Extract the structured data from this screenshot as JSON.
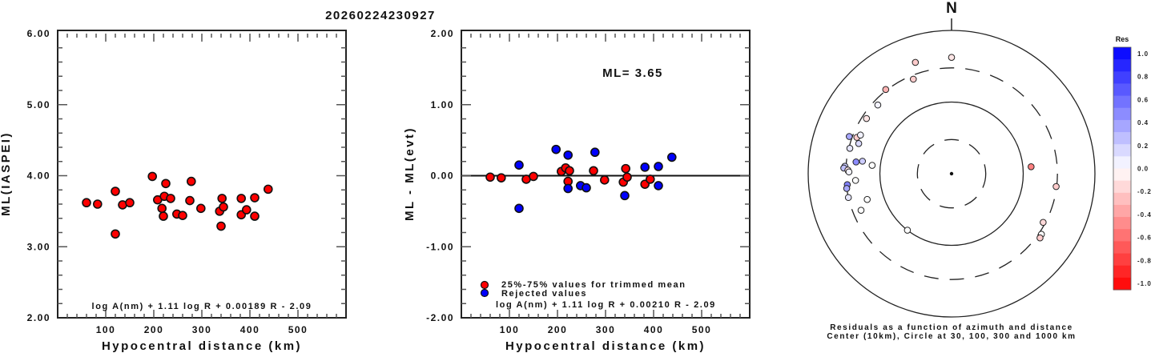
{
  "title": "20260224230927",
  "chart_data": [
    {
      "type": "scatter",
      "name": "ml-vs-distance",
      "xlabel": "Hypocentral distance (km)",
      "ylabel": "ML(IASPEI)",
      "xlim": [
        0,
        600
      ],
      "ylim": [
        2.0,
        6.0
      ],
      "xticks": [
        "100",
        "200",
        "300",
        "400",
        "500"
      ],
      "xtick_values": [
        100,
        200,
        300,
        400,
        500
      ],
      "yticks": [
        "2.00",
        "3.00",
        "4.00",
        "5.00",
        "6.00"
      ],
      "ytick_values": [
        2,
        3,
        4,
        5,
        6
      ],
      "formula": "log A(nm) + 1.11 log R + 0.00189 R - 2.09",
      "point_color": "#ff0000",
      "points": [
        [
          60,
          3.62
        ],
        [
          83,
          3.6
        ],
        [
          120,
          3.78
        ],
        [
          120,
          3.18
        ],
        [
          135,
          3.59
        ],
        [
          150,
          3.62
        ],
        [
          197,
          3.99
        ],
        [
          208,
          3.66
        ],
        [
          217,
          3.54
        ],
        [
          222,
          3.71
        ],
        [
          220,
          3.43
        ],
        [
          225,
          3.89
        ],
        [
          235,
          3.68
        ],
        [
          248,
          3.46
        ],
        [
          260,
          3.44
        ],
        [
          275,
          3.65
        ],
        [
          278,
          3.92
        ],
        [
          298,
          3.54
        ],
        [
          337,
          3.5
        ],
        [
          340,
          3.29
        ],
        [
          342,
          3.68
        ],
        [
          345,
          3.56
        ],
        [
          382,
          3.45
        ],
        [
          382,
          3.68
        ],
        [
          393,
          3.52
        ],
        [
          410,
          3.43
        ],
        [
          410,
          3.69
        ],
        [
          438,
          3.81
        ]
      ]
    },
    {
      "type": "scatter",
      "name": "residual-vs-distance",
      "xlabel": "Hypocentral distance (km)",
      "ylabel": "ML - ML(evt)",
      "xlim": [
        0,
        600
      ],
      "ylim": [
        -2.0,
        2.0
      ],
      "xticks": [
        "100",
        "200",
        "300",
        "400",
        "500"
      ],
      "xtick_values": [
        100,
        200,
        300,
        400,
        500
      ],
      "yticks": [
        "-2.00",
        "-1.00",
        "0.00",
        "1.00",
        "2.00"
      ],
      "ytick_values": [
        -2,
        -1,
        0,
        1,
        2
      ],
      "annotation": "ML= 3.65",
      "formula": "log A(nm) + 1.11 log R + 0.00210 R - 2.09",
      "legend": [
        {
          "label": "25%-75% values for trimmed mean",
          "color": "#ff0000"
        },
        {
          "label": "Rejected values",
          "color": "#0000ff"
        }
      ],
      "series": [
        {
          "name": "25%-75% values for trimmed mean",
          "color": "#ff0000",
          "points": [
            [
              60,
              -0.02
            ],
            [
              83,
              -0.03
            ],
            [
              135,
              -0.05
            ],
            [
              150,
              -0.01
            ],
            [
              208,
              0.06
            ],
            [
              217,
              0.11
            ],
            [
              222,
              -0.08
            ],
            [
              225,
              0.07
            ],
            [
              275,
              0.07
            ],
            [
              298,
              -0.06
            ],
            [
              337,
              -0.09
            ],
            [
              342,
              0.1
            ],
            [
              345,
              -0.02
            ],
            [
              382,
              -0.12
            ],
            [
              393,
              -0.05
            ]
          ]
        },
        {
          "name": "Rejected values",
          "color": "#0000ff",
          "points": [
            [
              120,
              0.15
            ],
            [
              120,
              -0.46
            ],
            [
              197,
              0.37
            ],
            [
              222,
              0.29
            ],
            [
              222,
              -0.18
            ],
            [
              248,
              -0.14
            ],
            [
              260,
              -0.17
            ],
            [
              278,
              0.33
            ],
            [
              340,
              -0.28
            ],
            [
              382,
              0.12
            ],
            [
              410,
              0.13
            ],
            [
              410,
              -0.14
            ],
            [
              438,
              0.26
            ]
          ]
        }
      ]
    },
    {
      "type": "scatter",
      "name": "residual-azimuth-polar",
      "north_label": "N",
      "caption_line1": "Residuals as a function of azimuth and distance",
      "caption_line2": "Center (10km), Circle at 30, 100, 300 and 1000 km",
      "rings_km": [
        30,
        100,
        300,
        1000
      ],
      "ring_styles": [
        "dashed",
        "solid",
        "dashed",
        "solid"
      ],
      "colorbar": {
        "title": "Res",
        "labels": [
          "1.0",
          "0.8",
          "0.6",
          "0.4",
          "0.2",
          "0.0",
          "-0.2",
          "-0.4",
          "-0.6",
          "-0.8",
          "-1.0"
        ],
        "min": -1.0,
        "max": 1.0,
        "high_color": "#0000ff",
        "low_color": "#ff0000",
        "mid_color": "#ffffff"
      },
      "stations": [
        {
          "az": 0,
          "dist": 420,
          "res": -0.1
        },
        {
          "az": 342,
          "dist": 430,
          "res": -0.2
        },
        {
          "az": 338,
          "dist": 265,
          "res": -0.2
        },
        {
          "az": 322,
          "dist": 310,
          "res": -0.3
        },
        {
          "az": 313,
          "dist": 255,
          "res": 0.05
        },
        {
          "az": 303,
          "dist": 260,
          "res": -0.1
        },
        {
          "az": 290,
          "dist": 330,
          "res": 0.35
        },
        {
          "az": 291,
          "dist": 260,
          "res": -0.2
        },
        {
          "az": 293,
          "dist": 240,
          "res": 0.05
        },
        {
          "az": 288,
          "dist": 230,
          "res": 0.15
        },
        {
          "az": 284,
          "dist": 290,
          "res": 0.1
        },
        {
          "az": 276,
          "dist": 130,
          "res": 0.0
        },
        {
          "az": 278,
          "dist": 180,
          "res": 0.2
        },
        {
          "az": 277,
          "dist": 220,
          "res": 0.45
        },
        {
          "az": 274,
          "dist": 310,
          "res": 0.2
        },
        {
          "az": 273,
          "dist": 320,
          "res": 0.25
        },
        {
          "az": 272,
          "dist": 280,
          "res": -0.1
        },
        {
          "az": 271,
          "dist": 270,
          "res": 0.05
        },
        {
          "az": 266,
          "dist": 220,
          "res": 0.0
        },
        {
          "az": 264,
          "dist": 290,
          "res": 0.5
        },
        {
          "az": 262,
          "dist": 300,
          "res": 0.35
        },
        {
          "az": 257,
          "dist": 300,
          "res": 0.1
        },
        {
          "az": 253,
          "dist": 170,
          "res": 0.0
        },
        {
          "az": 248,
          "dist": 230,
          "res": 0.0
        },
        {
          "az": 218,
          "dist": 100,
          "res": 0.0
        },
        {
          "az": 85,
          "dist": 130,
          "res": -0.5
        },
        {
          "az": 97,
          "dist": 295,
          "res": -0.2
        },
        {
          "az": 118,
          "dist": 280,
          "res": -0.15
        },
        {
          "az": 124,
          "dist": 325,
          "res": 0.0
        },
        {
          "az": 126,
          "dist": 335,
          "res": -0.2
        }
      ]
    }
  ]
}
